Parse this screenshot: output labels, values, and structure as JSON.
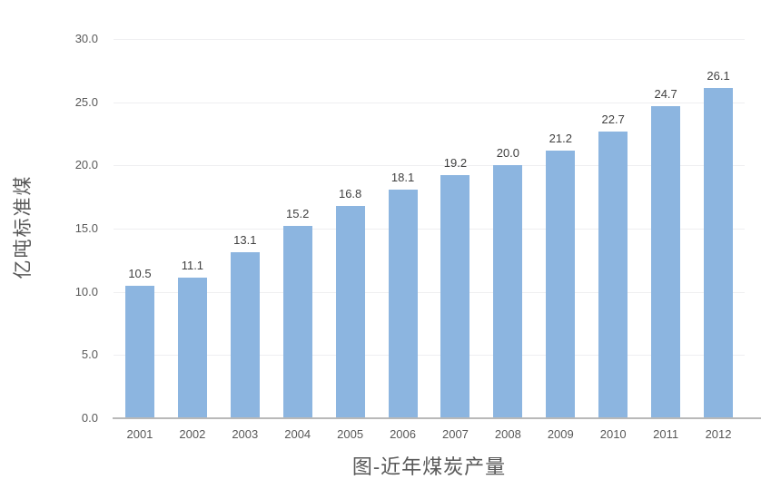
{
  "chart_data": {
    "type": "bar",
    "title": "图-近年煤炭产量",
    "ylabel": "亿吨标准煤",
    "xlabel": "",
    "categories": [
      "2001",
      "2002",
      "2003",
      "2004",
      "2005",
      "2006",
      "2007",
      "2008",
      "2009",
      "2010",
      "2011",
      "2012"
    ],
    "values": [
      10.5,
      11.1,
      13.1,
      15.2,
      16.8,
      18.1,
      19.2,
      20.0,
      21.2,
      22.7,
      24.7,
      26.1
    ],
    "value_labels": [
      "10.5",
      "11.1",
      "13.1",
      "15.2",
      "16.8",
      "18.1",
      "19.2",
      "20.0",
      "21.2",
      "22.7",
      "24.7",
      "26.1"
    ],
    "ylim": [
      0,
      30
    ],
    "yticks": [
      "0.0",
      "5.0",
      "10.0",
      "15.0",
      "20.0",
      "25.0",
      "30.0"
    ],
    "grid": true,
    "legend": "none",
    "colors": {
      "bar_fill": "#8CB5E0",
      "gridline": "#EFEFF1",
      "axis_line": "#B9B9B9",
      "tick_label_text": "#595959",
      "data_label_text": "#404040",
      "axis_title_text": "#595959",
      "title_text": "#595959"
    }
  }
}
